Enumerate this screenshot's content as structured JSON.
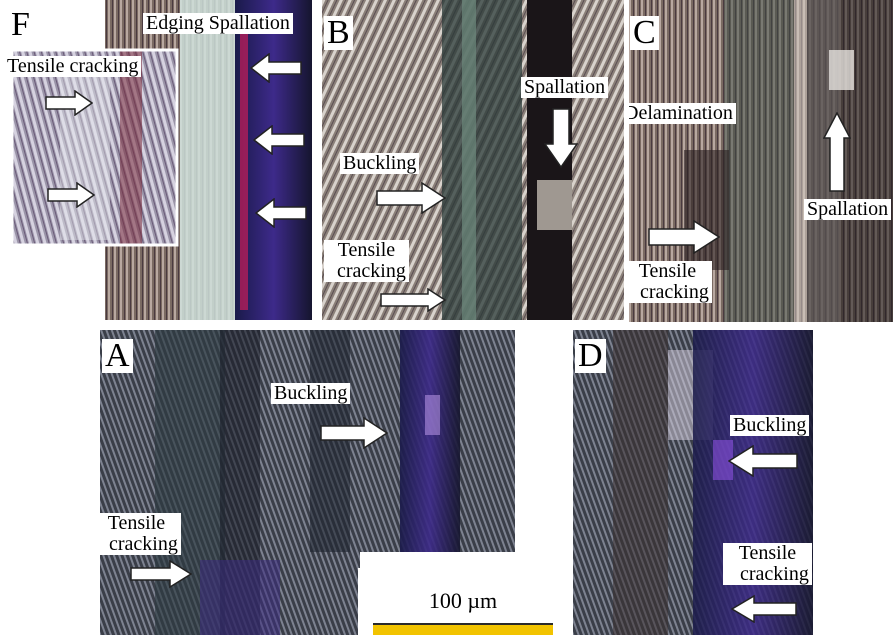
{
  "panels": {
    "F": {
      "label": "F",
      "annotations": {
        "tensile": "Tensile cracking",
        "edging": "Edging Spallation"
      }
    },
    "B": {
      "label": "B",
      "annotations": {
        "spallation": "Spallation",
        "buckling": "Buckling",
        "tensile_line1": "Tensile",
        "tensile_line2": "cracking"
      }
    },
    "C": {
      "label": "C",
      "annotations": {
        "delamination": "Delamination",
        "spallation": "Spallation",
        "tensile_line1": "Tensile",
        "tensile_line2": "cracking"
      }
    },
    "A": {
      "label": "A",
      "annotations": {
        "buckling": "Buckling",
        "tensile_line1": "Tensile",
        "tensile_line2": "cracking"
      }
    },
    "D": {
      "label": "D",
      "annotations": {
        "buckling": "Buckling",
        "tensile_line1": "Tensile",
        "tensile_line2": "cracking"
      }
    }
  },
  "scale_bar": {
    "label": "100 µm",
    "color": "#f2c300"
  },
  "colors": {
    "arrow_fill": "#ffffff",
    "arrow_stroke": "#222222",
    "label_bg": "#ffffff"
  }
}
